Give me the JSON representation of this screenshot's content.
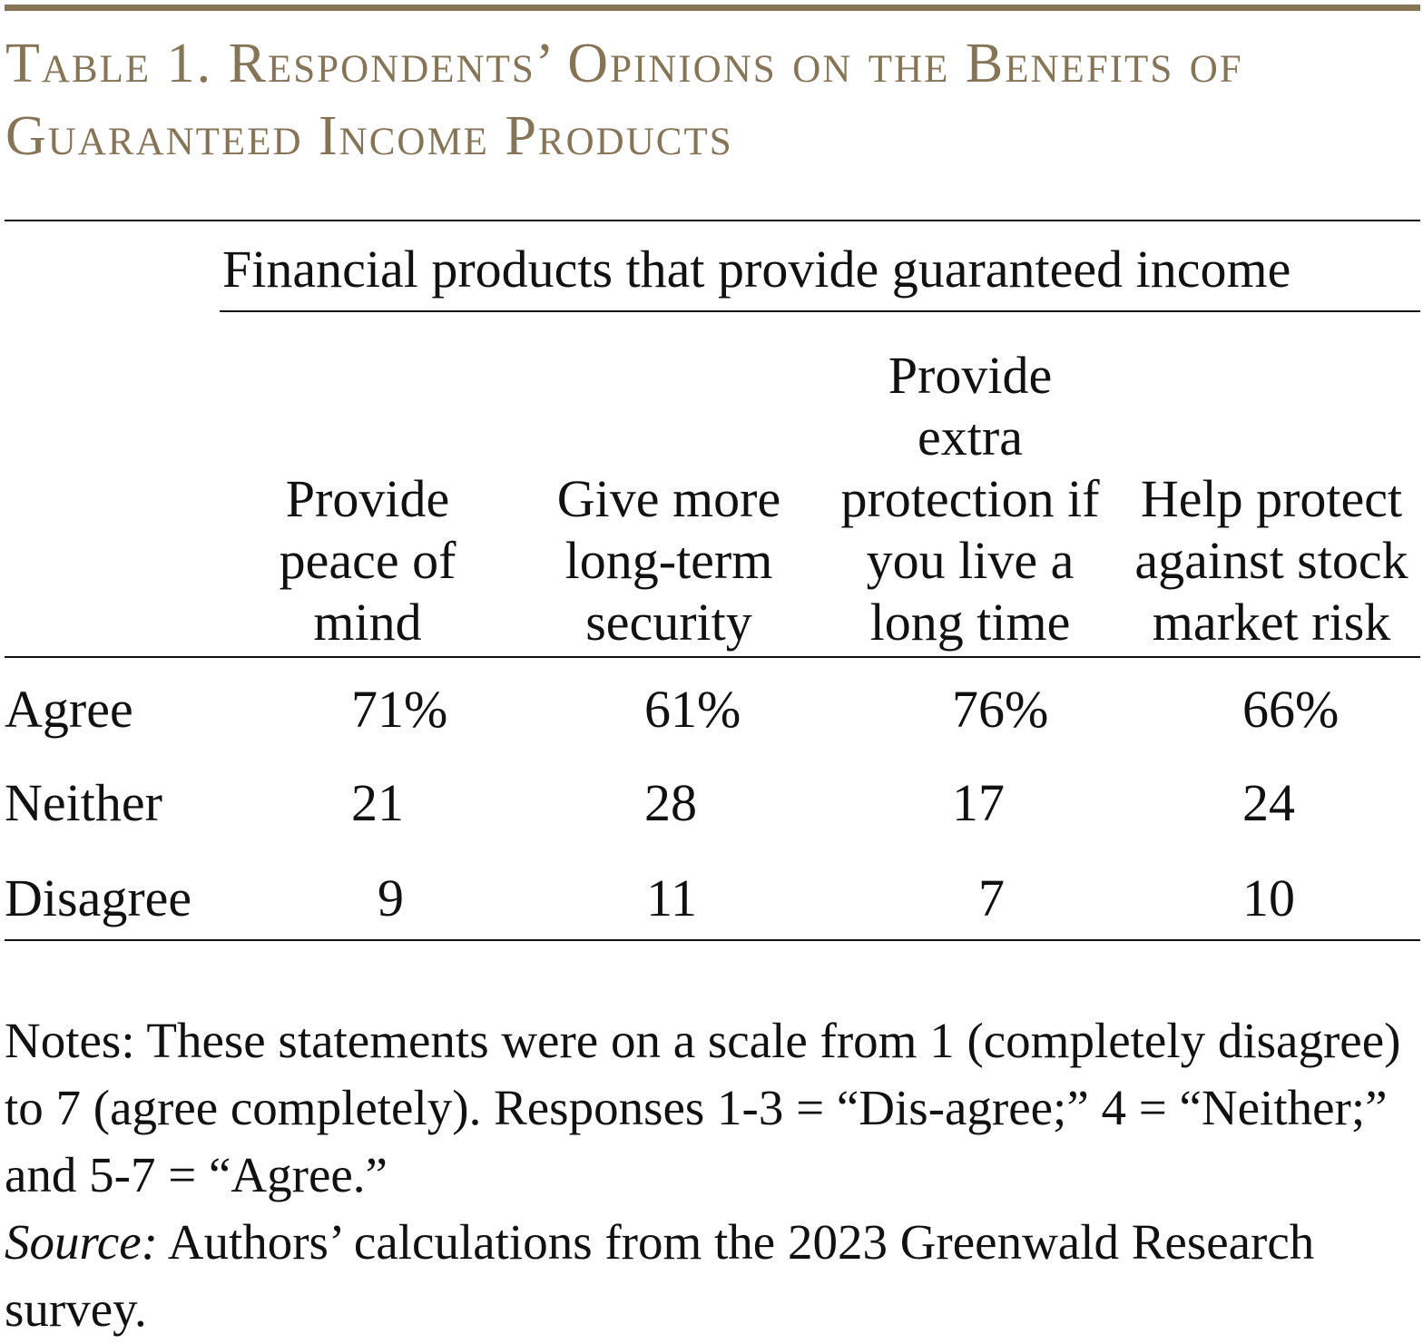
{
  "title": "Table 1. Respondents’ Opinions on the Benefits of Guaranteed Income Products",
  "accent_color": "#857556",
  "spanner_header": "Financial products that provide guaranteed income",
  "columns": [
    "Provide peace of mind",
    "Give more long-term security",
    "Provide extra protection if you live a long time",
    "Help protect against stock market risk"
  ],
  "rows": [
    {
      "label": "Agree",
      "values": [
        "71",
        "61",
        "76",
        "66"
      ],
      "suffix": "%"
    },
    {
      "label": "Neither",
      "values": [
        "21",
        "28",
        "17",
        "24"
      ],
      "suffix": ""
    },
    {
      "label": "Disagree",
      "values": [
        "9",
        "11",
        "7",
        "10"
      ],
      "suffix": ""
    }
  ],
  "notes": "Notes: These statements were on a scale from 1 (completely disagree) to 7 (agree completely).  Responses 1-3 = “Dis-agree;” 4 = “Neither;” and 5-7 = “Agree.”",
  "source_label": "Source:",
  "source_text": " Authors’ calculations from the 2023 Greenwald Research survey."
}
